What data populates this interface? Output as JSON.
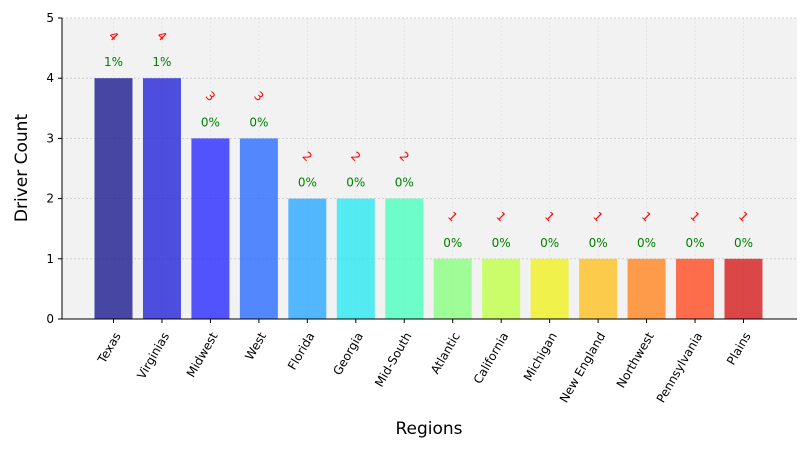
{
  "chart_data": {
    "type": "bar",
    "categories": [
      "Texas",
      "Virginias",
      "Midwest",
      "West",
      "Florida",
      "Georgia",
      "Mid-South",
      "Atlantic",
      "California",
      "Michigan",
      "New England",
      "Northwest",
      "Pennsylvania",
      "Plains"
    ],
    "values": [
      4,
      4,
      3,
      3,
      2,
      2,
      2,
      1,
      1,
      1,
      1,
      1,
      1,
      1
    ],
    "percent_labels": [
      "1%",
      "1%",
      "0%",
      "0%",
      "0%",
      "0%",
      "0%",
      "0%",
      "0%",
      "0%",
      "0%",
      "0%",
      "0%",
      "0%"
    ],
    "xlabel": "Regions",
    "ylabel": "Driver Count",
    "ylim": [
      0,
      5
    ],
    "yticks": [
      0,
      1,
      2,
      3,
      4,
      5
    ],
    "grid": true,
    "legend": "none",
    "colors": [
      "#1c1c8e",
      "#2323d8",
      "#2a2aff",
      "#2a6cff",
      "#2aa8ff",
      "#2ae8f0",
      "#4affc0",
      "#8aff80",
      "#c0ff48",
      "#f0f020",
      "#ffc020",
      "#ff8420",
      "#ff4a20",
      "#d41c1c"
    ],
    "count_label_color": "#ff0000",
    "percent_label_color": "#008000",
    "plot_background": "#f2f2f2"
  }
}
